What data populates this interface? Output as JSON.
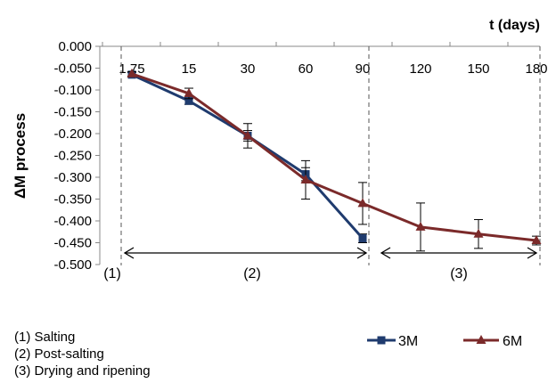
{
  "chart_data": {
    "type": "line",
    "title": "",
    "xlabel": "t (days)",
    "ylabel": "ΔM process",
    "ylim": [
      -0.5,
      0.0
    ],
    "y_ticks": [
      "0.000",
      "-0.050",
      "-0.100",
      "-0.150",
      "-0.200",
      "-0.250",
      "-0.300",
      "-0.350",
      "-0.400",
      "-0.450",
      "-0.500"
    ],
    "x_tick_labels": [
      "1.75",
      "15",
      "30",
      "60",
      "90",
      "120",
      "150",
      "180"
    ],
    "grid": false,
    "legend_position": "bottom-right",
    "series": [
      {
        "name": "3M",
        "color": "#1f3b6e",
        "marker": "square",
        "x": [
          "1.75",
          "15",
          "30",
          "60",
          "90"
        ],
        "values": [
          -0.065,
          -0.125,
          -0.205,
          -0.293,
          -0.44
        ],
        "errors": [
          0.005,
          0.008,
          0.012,
          0.015,
          0.01
        ]
      },
      {
        "name": "6M",
        "color": "#7b2a2a",
        "marker": "triangle",
        "x": [
          "1.75",
          "15",
          "30",
          "60",
          "90",
          "120",
          "150",
          "180"
        ],
        "values": [
          -0.063,
          -0.108,
          -0.205,
          -0.306,
          -0.36,
          -0.414,
          -0.43,
          -0.445
        ],
        "errors": [
          0.005,
          0.012,
          0.028,
          0.044,
          0.048,
          0.055,
          0.033,
          0.01
        ]
      }
    ],
    "phase_labels": [
      "(1)",
      "(2)",
      "(3)"
    ],
    "phase_notes": [
      "(1) Salting",
      "(2) Post-salting",
      "(3) Drying and ripening"
    ]
  }
}
